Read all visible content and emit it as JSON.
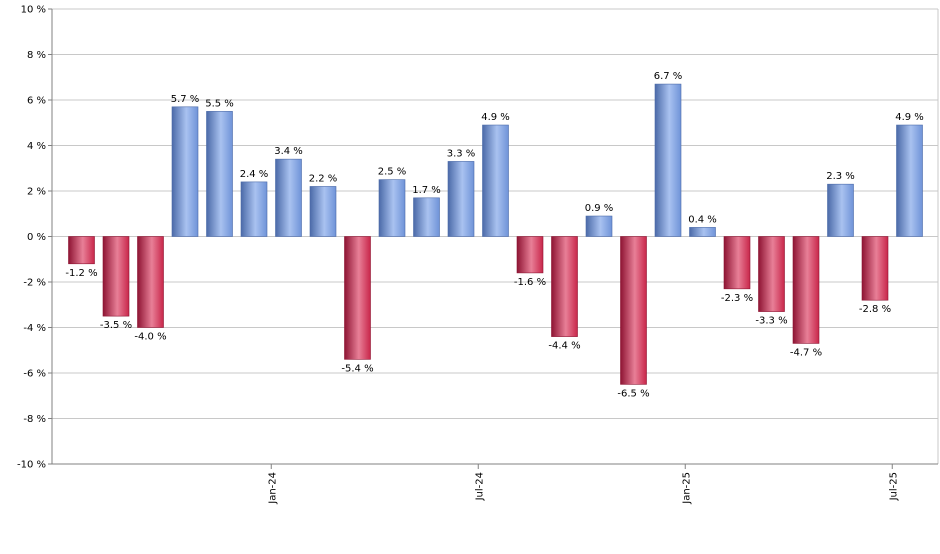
{
  "chart_data": {
    "type": "bar",
    "title": "",
    "xlabel": "",
    "ylabel": "",
    "ylim": [
      -10,
      10
    ],
    "yticks": [
      10,
      8,
      6,
      4,
      2,
      0,
      -2,
      -4,
      -6,
      -8,
      -10
    ],
    "ytick_labels": [
      "10 %",
      "8 %",
      "6 %",
      "4 %",
      "2 %",
      "0 %",
      "-2 %",
      "-4 %",
      "-6 %",
      "-8 %",
      "-10 %"
    ],
    "xtick_labels": [
      "Jan-24",
      "Jul-24",
      "Jan-25",
      "Jul-25"
    ],
    "xtick_bar_index": [
      5.5,
      11.5,
      17.5,
      23.5
    ],
    "grid": true,
    "legend": "none",
    "values": [
      -1.2,
      -3.5,
      -4.0,
      5.7,
      5.5,
      2.4,
      3.4,
      2.2,
      -5.4,
      2.5,
      1.7,
      3.3,
      4.9,
      -1.6,
      -4.4,
      0.9,
      -6.5,
      6.7,
      0.4,
      -2.3,
      -3.3,
      -4.7,
      2.3,
      -2.8,
      4.9
    ],
    "data_labels": [
      "-1.2 %",
      "-3.5 %",
      "-4.0 %",
      "5.7 %",
      "5.5 %",
      "2.4 %",
      "3.4 %",
      "2.2 %",
      "-5.4 %",
      "2.5 %",
      "1.7 %",
      "3.3 %",
      "4.9 %",
      "-1.6 %",
      "-4.4 %",
      "0.9 %",
      "-6.5 %",
      "6.7 %",
      "0.4 %",
      "-2.3 %",
      "-3.3 %",
      "-4.7 %",
      "2.3 %",
      "-2.8 %",
      "4.9 %"
    ],
    "colors": {
      "positive": "#6f93d8",
      "positive_light": "#a9c2f0",
      "positive_dark": "#4b6aa8",
      "negative": "#c8264a",
      "negative_light": "#e87f97",
      "negative_dark": "#8e1433",
      "grid": "#c8c8c8",
      "axis": "#808080"
    }
  }
}
